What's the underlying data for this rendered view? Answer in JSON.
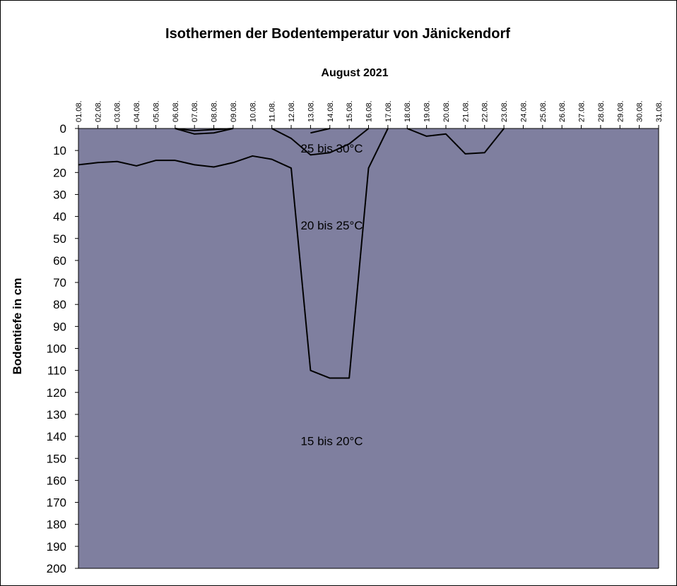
{
  "chart_data": {
    "type": "area",
    "title": "Isothermen der Bodentemperatur von Jänickendorf",
    "subtitle": "August 2021",
    "xlabel": "",
    "ylabel": "Bodentiefe in cm",
    "x": [
      "01.08.",
      "02.08.",
      "03.08.",
      "04.08.",
      "05.08.",
      "06.08.",
      "07.08.",
      "08.08.",
      "09.08.",
      "10.08.",
      "11.08.",
      "12.08.",
      "13.08.",
      "14.08.",
      "15.08.",
      "16.08.",
      "17.08.",
      "18.08.",
      "19.08.",
      "20.08.",
      "21.08.",
      "22.08.",
      "23.08.",
      "24.08.",
      "25.08.",
      "26.08.",
      "27.08.",
      "28.08.",
      "29.08.",
      "30.08.",
      "31.08."
    ],
    "yticks": [
      0,
      10,
      20,
      30,
      40,
      50,
      60,
      70,
      80,
      90,
      100,
      110,
      120,
      130,
      140,
      150,
      160,
      170,
      180,
      190,
      200
    ],
    "ylim": [
      0,
      200
    ],
    "y_inverted": true,
    "grid": false,
    "series": [
      {
        "name": "15 bis 20°C",
        "color": "#FFFF00",
        "depth_top": [
          16.5,
          15.5,
          15,
          17,
          14.5,
          14.5,
          16.5,
          17.5,
          15.5,
          12.5,
          14,
          18,
          110,
          113.5,
          113.5,
          18,
          0,
          0,
          0,
          0,
          0,
          0,
          0,
          0,
          0,
          0,
          0,
          0,
          0,
          0,
          0
        ]
      },
      {
        "name": "20 bis 25°C",
        "color": "#FFC000",
        "depth_top": [
          0,
          0,
          0,
          0,
          0,
          0,
          2.5,
          2,
          0,
          0,
          0,
          0,
          12,
          11,
          7,
          0,
          0,
          0,
          3.5,
          2.5,
          11.5,
          11,
          0,
          0,
          0,
          0,
          0,
          0,
          0,
          0,
          0
        ]
      },
      {
        "name": "25 bis 30°C",
        "color": "#FF0000",
        "depth_top": [
          0,
          0,
          0,
          0,
          0,
          0,
          0,
          0,
          0,
          0,
          0,
          0,
          2,
          0,
          0,
          0,
          0,
          0,
          0,
          0,
          0,
          0,
          0,
          0,
          0,
          0,
          0,
          0,
          0,
          0,
          0
        ]
      },
      {
        "color": "#7F7F9F",
        "depth_top": [
          0,
          0,
          0,
          0,
          0,
          0,
          0,
          0,
          0,
          0,
          0,
          0,
          0,
          0,
          0,
          0,
          0,
          0,
          0,
          0,
          0,
          0,
          0,
          0,
          0,
          0,
          0,
          0,
          0,
          0,
          0
        ]
      }
    ],
    "outline_tops": [
      [
        16.5,
        15.5,
        15,
        17,
        14.5,
        14.5,
        16.5,
        17.5,
        15.5,
        12.5,
        14,
        18,
        110,
        113.5,
        113.5,
        18,
        0,
        null,
        null,
        null,
        null,
        null,
        null,
        null,
        null,
        null,
        null,
        null,
        null,
        null,
        null
      ],
      [
        null,
        null,
        null,
        null,
        null,
        0,
        2.5,
        2,
        0,
        null,
        0,
        4.5,
        12,
        11,
        7,
        0,
        null,
        0,
        3.5,
        2.5,
        11.5,
        11,
        0,
        null,
        null,
        null,
        null,
        null,
        null,
        null,
        null
      ],
      [
        null,
        null,
        null,
        null,
        null,
        0,
        1,
        0.5,
        0,
        null,
        null,
        null,
        2,
        0,
        null,
        null,
        null,
        null,
        null,
        null,
        null,
        null,
        null,
        null,
        null,
        null,
        null,
        null,
        null,
        null,
        null
      ]
    ],
    "annotations": [
      {
        "text": "25 bis 30°C",
        "x": 14.1,
        "y": 9
      },
      {
        "text": "20 bis 25°C",
        "x": 14.1,
        "y": 44
      },
      {
        "text": "15 bis 20°C",
        "x": 14.1,
        "y": 142
      }
    ]
  }
}
